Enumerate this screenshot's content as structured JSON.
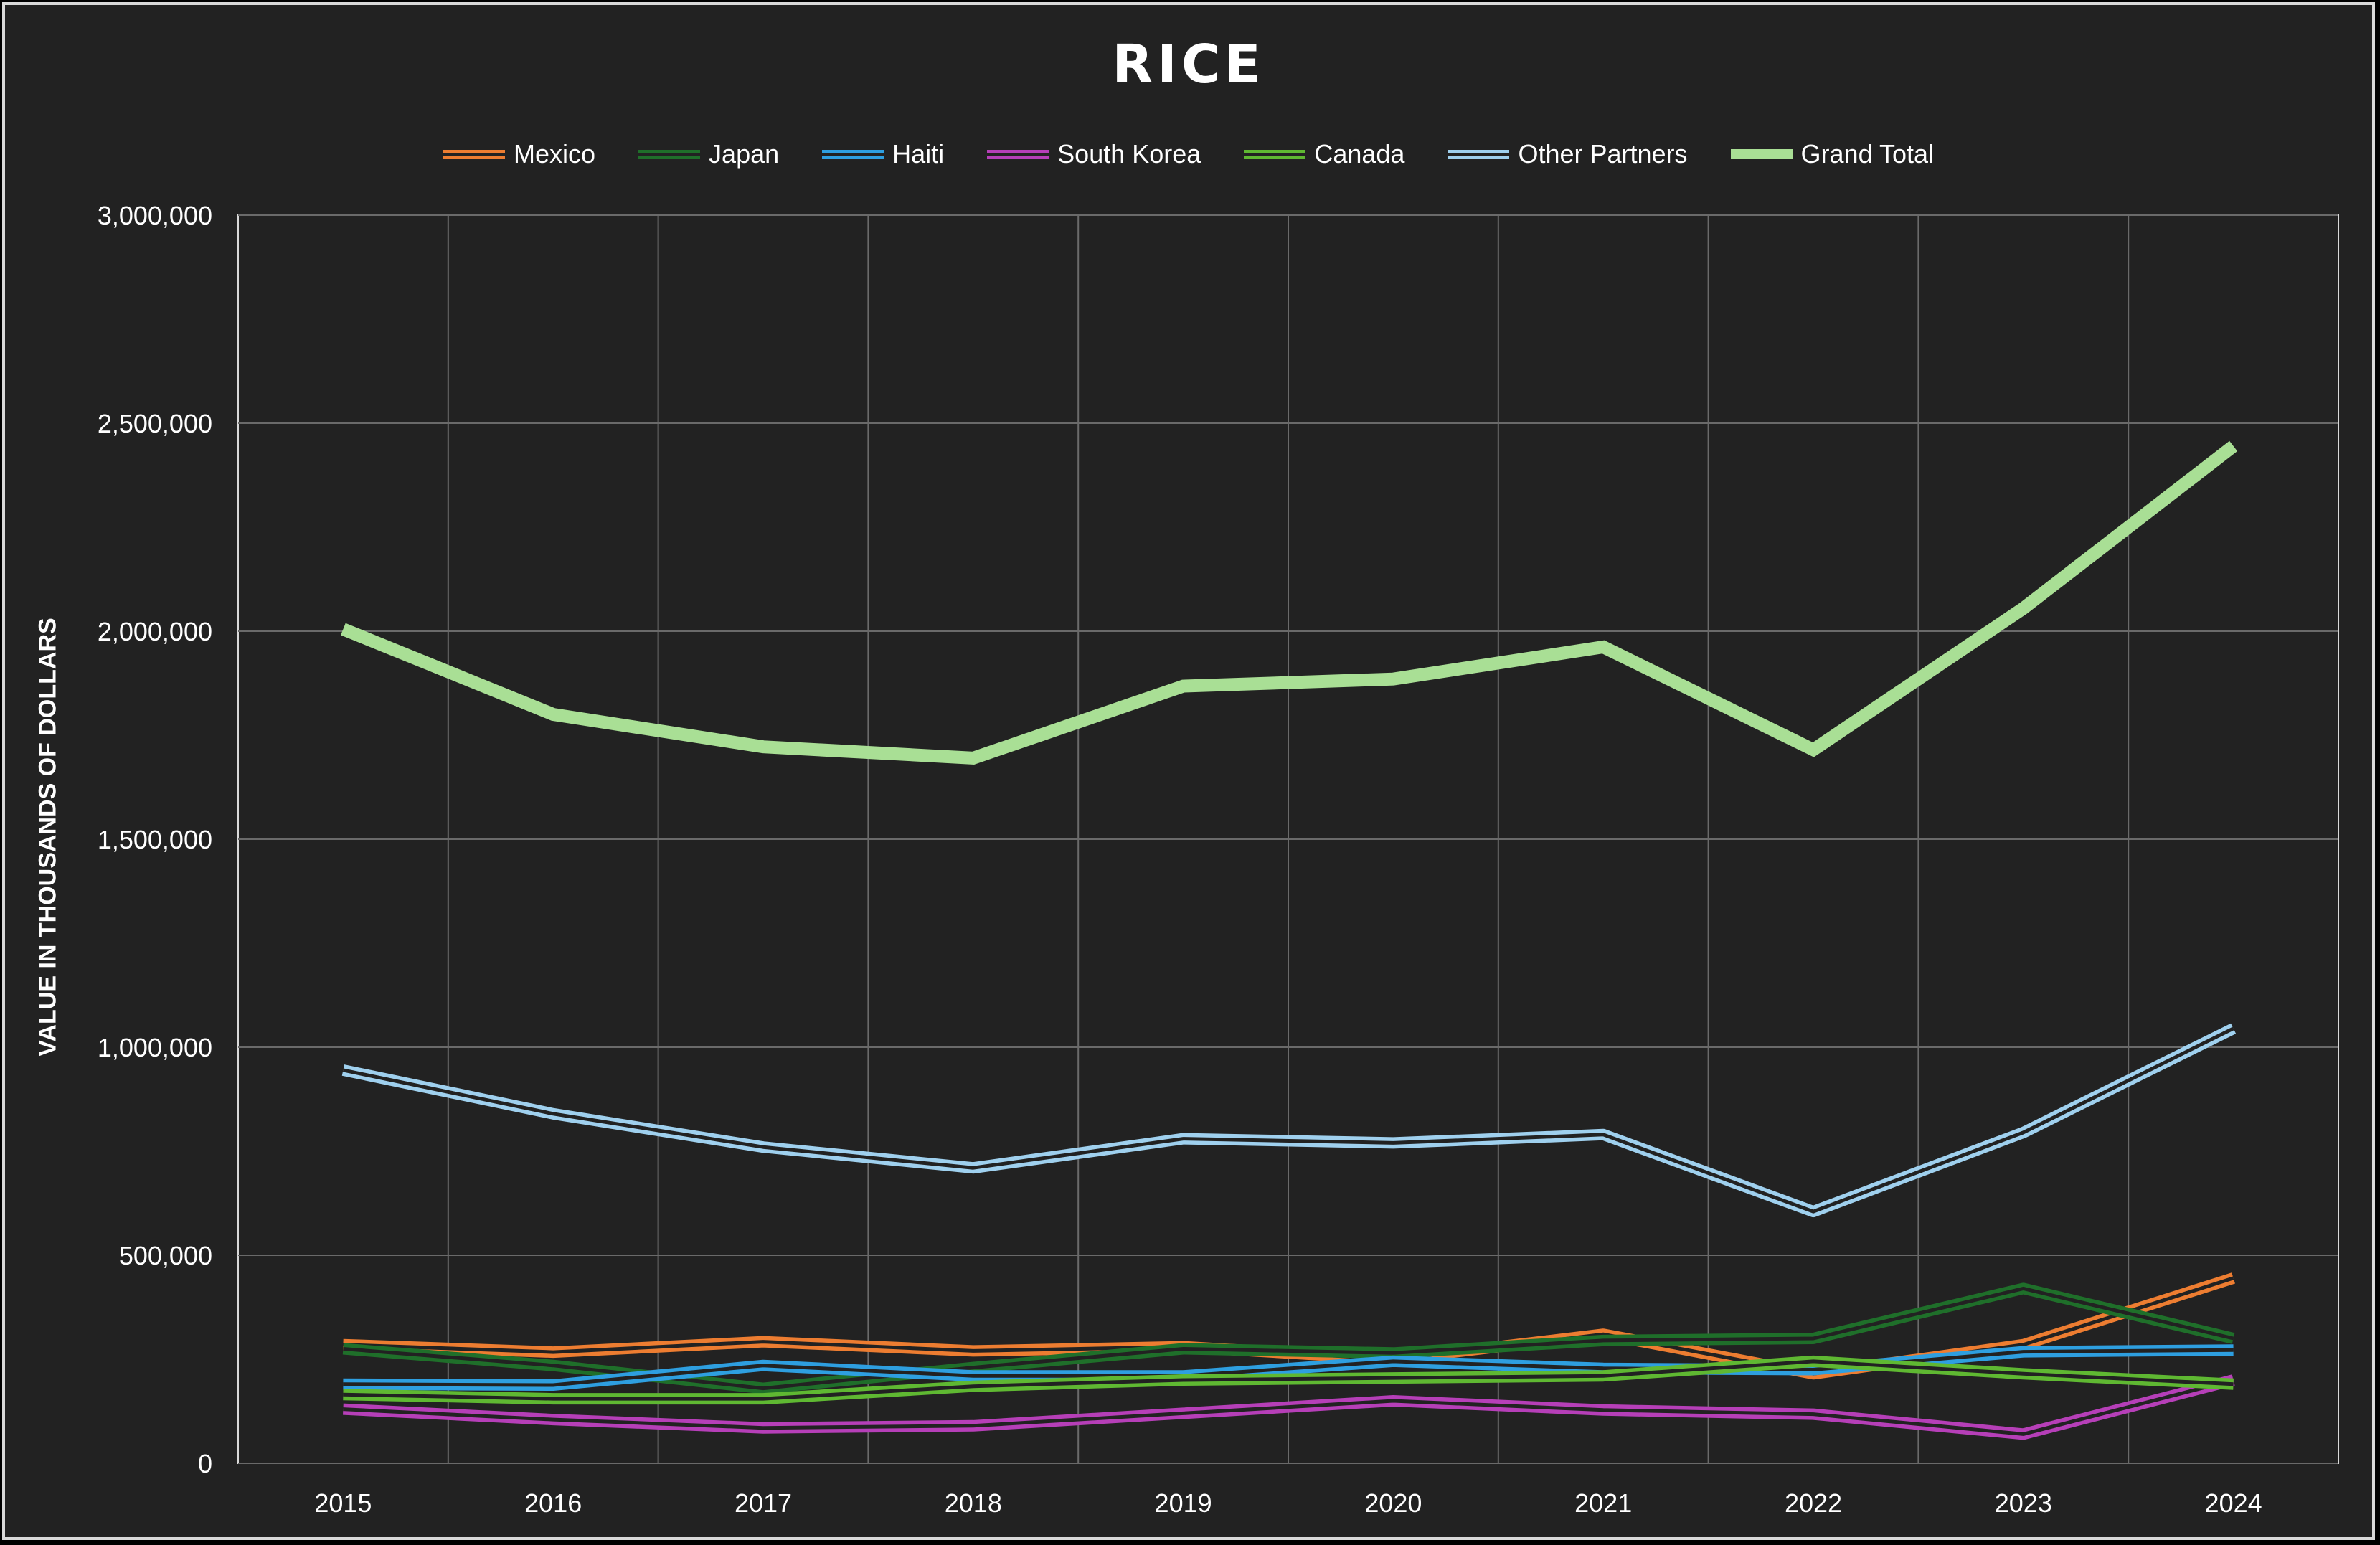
{
  "chart_data": {
    "type": "line",
    "title": "RICE",
    "xlabel": "",
    "ylabel": "VALUE IN THOUSANDS OF DOLLARS",
    "ylim": [
      0,
      3000000
    ],
    "y_ticks": [
      0,
      500000,
      1000000,
      1500000,
      2000000,
      2500000,
      3000000
    ],
    "y_tick_labels": [
      "0",
      "500,000",
      "1,000,000",
      "1,500,000",
      "2,000,000",
      "2,500,000",
      "3,000,000"
    ],
    "categories": [
      "2015",
      "2016",
      "2017",
      "2018",
      "2019",
      "2020",
      "2021",
      "2022",
      "2023",
      "2024"
    ],
    "grid": true,
    "legend_position": "top",
    "series": [
      {
        "name": "Mexico",
        "color": "#ed7d31",
        "values": [
          285000,
          267000,
          292000,
          270000,
          280000,
          250000,
          310000,
          215000,
          285000,
          445000
        ]
      },
      {
        "name": "Japan",
        "color": "#1f6f2a",
        "values": [
          275000,
          235000,
          180000,
          230000,
          275000,
          265000,
          295000,
          300000,
          420000,
          300000
        ]
      },
      {
        "name": "Haiti",
        "color": "#2e9fe0",
        "values": [
          190000,
          188000,
          235000,
          210000,
          210000,
          245000,
          228000,
          225000,
          268000,
          272000
        ]
      },
      {
        "name": "South Korea",
        "color": "#b63fb8",
        "values": [
          130000,
          105000,
          85000,
          90000,
          120000,
          150000,
          128000,
          118000,
          70000,
          200000
        ]
      },
      {
        "name": "Canada",
        "color": "#5fb832",
        "values": [
          165000,
          155000,
          155000,
          185000,
          200000,
          205000,
          210000,
          245000,
          215000,
          190000
        ]
      },
      {
        "name": "Other Partners",
        "color": "#9fd0ee",
        "values": [
          945000,
          840000,
          760000,
          710000,
          780000,
          770000,
          790000,
          605000,
          795000,
          1045000
        ]
      },
      {
        "name": "Grand Total",
        "color": "#a9df95",
        "values": [
          2005000,
          1800000,
          1722000,
          1695000,
          1868000,
          1885000,
          1962000,
          1715000,
          2055000,
          2445000
        ]
      }
    ]
  }
}
